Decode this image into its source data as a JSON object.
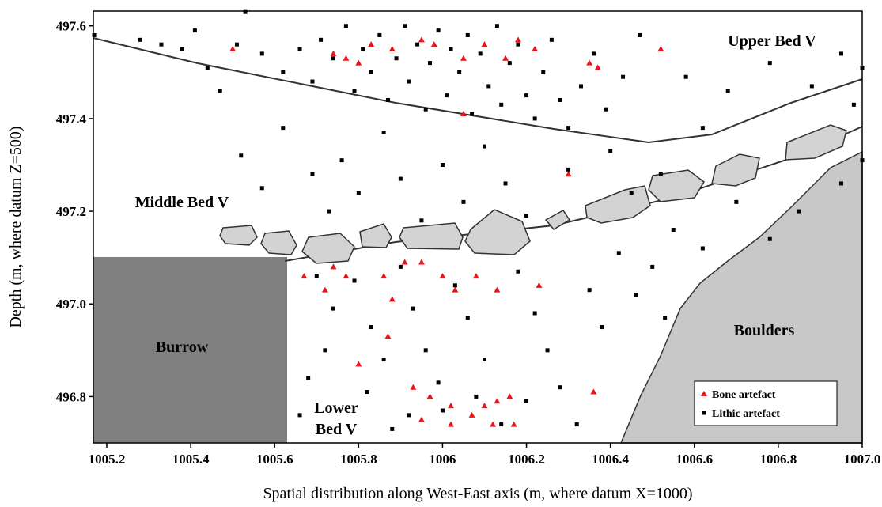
{
  "chart_data": {
    "type": "scatter",
    "x_label": "Spatial distribution along West-East axis (m, where datum X=1000)",
    "y_label": "Depth (m, where datum Z=500)",
    "xlim": [
      1005.168,
      1007.0
    ],
    "ylim": [
      496.7,
      497.632
    ],
    "xticks": [
      1005.2,
      1005.4,
      1005.6,
      1005.8,
      1006,
      1006.2,
      1006.4,
      1006.6,
      1006.8,
      {
        "value": 1007,
        "label": "1007.0"
      }
    ],
    "yticks": [
      496.8,
      {
        "value": 497,
        "label": "497.0"
      },
      497.2,
      497.4,
      497.6
    ],
    "annotations": [
      "Upper Bed V",
      "Middle Bed V",
      "Burrow",
      "Boulders",
      "Lower",
      "Bed V"
    ],
    "legend": "lower right",
    "series": [
      {
        "name": "Bone artefact",
        "color": "#e8141a",
        "marker": "triangle",
        "x": [
          1005.5,
          1005.74,
          1005.77,
          1005.8,
          1005.83,
          1005.88,
          1005.95,
          1005.98,
          1006.05,
          1006.1,
          1006.15,
          1006.18,
          1006.22,
          1006.35,
          1006.37,
          1006.52,
          1006.05,
          1006.3,
          1005.67,
          1005.74,
          1005.77,
          1005.72,
          1005.86,
          1005.88,
          1005.91,
          1005.95,
          1006.0,
          1006.03,
          1006.08,
          1006.13,
          1006.23,
          1005.87,
          1005.8,
          1005.93,
          1005.97,
          1006.02,
          1006.13,
          1006.16,
          1006.36,
          1005.95,
          1006.02,
          1006.07,
          1006.12,
          1006.17,
          1006.1
        ],
        "y": [
          497.55,
          497.54,
          497.53,
          497.52,
          497.56,
          497.55,
          497.57,
          497.56,
          497.53,
          497.56,
          497.53,
          497.57,
          497.55,
          497.52,
          497.51,
          497.55,
          497.41,
          497.28,
          497.06,
          497.08,
          497.06,
          497.03,
          497.06,
          497.01,
          497.09,
          497.09,
          497.06,
          497.03,
          497.06,
          497.03,
          497.04,
          496.93,
          496.87,
          496.82,
          496.8,
          496.78,
          496.79,
          496.8,
          496.81,
          496.75,
          496.74,
          496.76,
          496.74,
          496.74,
          496.78
        ]
      },
      {
        "name": "Lithic artefact",
        "color": "#000000",
        "marker": "square",
        "x": [
          1005.17,
          1005.28,
          1005.33,
          1005.38,
          1005.41,
          1005.44,
          1005.47,
          1005.51,
          1005.53,
          1005.57,
          1005.62,
          1005.66,
          1005.69,
          1005.71,
          1005.74,
          1005.77,
          1005.79,
          1005.81,
          1005.83,
          1005.85,
          1005.87,
          1005.89,
          1005.91,
          1005.92,
          1005.94,
          1005.96,
          1005.97,
          1005.99,
          1006.01,
          1006.02,
          1006.04,
          1006.06,
          1006.07,
          1006.09,
          1006.11,
          1006.13,
          1006.14,
          1006.16,
          1006.18,
          1006.2,
          1006.22,
          1006.24,
          1006.26,
          1006.28,
          1006.3,
          1006.33,
          1006.36,
          1006.39,
          1006.43,
          1006.47,
          1006.58,
          1006.62,
          1006.68,
          1006.78,
          1006.88,
          1006.95,
          1006.98,
          1007.0,
          1005.52,
          1005.57,
          1005.62,
          1005.69,
          1005.73,
          1005.76,
          1005.8,
          1005.86,
          1005.9,
          1005.95,
          1006.0,
          1006.05,
          1006.1,
          1006.15,
          1006.2,
          1006.3,
          1006.4,
          1006.45,
          1006.52,
          1006.55,
          1006.62,
          1006.7,
          1006.78,
          1006.85,
          1006.95,
          1007.0,
          1005.7,
          1005.74,
          1005.72,
          1005.68,
          1005.66,
          1005.79,
          1005.83,
          1005.86,
          1005.82,
          1005.9,
          1005.93,
          1005.96,
          1005.99,
          1005.92,
          1006.03,
          1006.06,
          1006.1,
          1006.08,
          1006.14,
          1006.18,
          1006.22,
          1006.25,
          1006.28,
          1006.32,
          1006.35,
          1006.38,
          1006.42,
          1006.46,
          1006.5,
          1006.53,
          1005.88,
          1006.0,
          1006.2
        ],
        "y": [
          497.58,
          497.57,
          497.56,
          497.55,
          497.59,
          497.51,
          497.46,
          497.56,
          497.63,
          497.54,
          497.5,
          497.55,
          497.48,
          497.57,
          497.53,
          497.6,
          497.46,
          497.55,
          497.5,
          497.58,
          497.44,
          497.53,
          497.6,
          497.48,
          497.56,
          497.42,
          497.52,
          497.59,
          497.45,
          497.55,
          497.5,
          497.58,
          497.41,
          497.54,
          497.47,
          497.6,
          497.43,
          497.52,
          497.56,
          497.45,
          497.4,
          497.5,
          497.57,
          497.44,
          497.38,
          497.47,
          497.54,
          497.42,
          497.49,
          497.58,
          497.49,
          497.38,
          497.46,
          497.52,
          497.47,
          497.54,
          497.43,
          497.51,
          497.32,
          497.25,
          497.38,
          497.28,
          497.2,
          497.31,
          497.24,
          497.37,
          497.27,
          497.18,
          497.3,
          497.22,
          497.34,
          497.26,
          497.19,
          497.29,
          497.33,
          497.24,
          497.28,
          497.16,
          497.12,
          497.22,
          497.14,
          497.2,
          497.26,
          497.31,
          497.06,
          496.99,
          496.9,
          496.84,
          496.76,
          497.05,
          496.95,
          496.88,
          496.81,
          497.08,
          496.99,
          496.9,
          496.83,
          496.76,
          497.04,
          496.97,
          496.88,
          496.8,
          496.74,
          497.07,
          496.98,
          496.9,
          496.82,
          496.74,
          497.03,
          496.95,
          497.11,
          497.02,
          497.08,
          496.97,
          496.73,
          496.77,
          496.79
        ]
      }
    ]
  }
}
